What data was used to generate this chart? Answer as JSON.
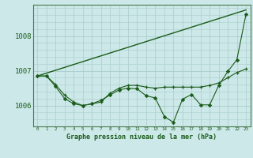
{
  "bg_color": "#cce8e8",
  "line_color": "#1a5c1a",
  "grid_color": "#aacccc",
  "axis_color": "#4a7a4a",
  "xlabel": "Graphe pression niveau de la mer (hPa)",
  "xlim": [
    -0.5,
    23.5
  ],
  "ylim": [
    1005.4,
    1008.9
  ],
  "yticks": [
    1006,
    1007,
    1008
  ],
  "xticks": [
    0,
    1,
    2,
    3,
    4,
    5,
    6,
    7,
    8,
    9,
    10,
    11,
    12,
    13,
    14,
    15,
    16,
    17,
    18,
    19,
    20,
    21,
    22,
    23
  ],
  "series_straight": {
    "x": [
      0,
      23
    ],
    "y": [
      1006.85,
      1008.75
    ]
  },
  "series_smooth": {
    "x": [
      0,
      1,
      2,
      3,
      4,
      5,
      6,
      7,
      8,
      9,
      10,
      11,
      12,
      13,
      14,
      15,
      16,
      17,
      18,
      19,
      20,
      21,
      22,
      23
    ],
    "y": [
      1006.85,
      1006.85,
      1006.6,
      1006.3,
      1006.1,
      1006.0,
      1006.05,
      1006.1,
      1006.35,
      1006.5,
      1006.58,
      1006.58,
      1006.53,
      1006.5,
      1006.53,
      1006.53,
      1006.53,
      1006.53,
      1006.53,
      1006.58,
      1006.65,
      1006.8,
      1006.95,
      1007.05
    ]
  },
  "series_jagged": {
    "x": [
      0,
      1,
      2,
      3,
      4,
      5,
      6,
      7,
      8,
      9,
      10,
      11,
      12,
      13,
      14,
      15,
      16,
      17,
      18,
      19,
      20,
      21,
      22,
      23
    ],
    "y": [
      1006.85,
      1006.85,
      1006.55,
      1006.2,
      1006.05,
      1006.0,
      1006.05,
      1006.15,
      1006.3,
      1006.45,
      1006.5,
      1006.48,
      1006.28,
      1006.22,
      1005.68,
      1005.52,
      1006.18,
      1006.32,
      1006.02,
      1006.02,
      1006.58,
      1006.98,
      1007.32,
      1008.62
    ]
  }
}
